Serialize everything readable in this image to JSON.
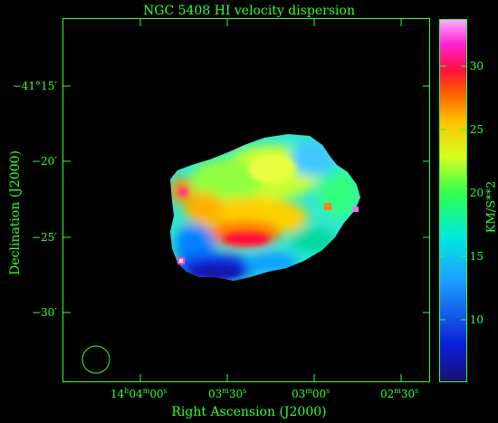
{
  "title": "NGC 5408   HI velocity dispersion",
  "axes": {
    "x_label": "Right Ascension (J2000)",
    "y_label": "Declination (J2000)",
    "x_ticks": [
      {
        "h": "14",
        "m": "04",
        "s": "00",
        "show_h": true
      },
      {
        "h": "",
        "m": "03",
        "s": "30",
        "show_h": false
      },
      {
        "h": "",
        "m": "03",
        "s": "00",
        "show_h": false
      },
      {
        "h": "",
        "m": "02",
        "s": "30",
        "show_h": false
      }
    ],
    "y_ticks": [
      "−41°15′",
      "−20′",
      "−25′",
      "−30′"
    ]
  },
  "colorbar": {
    "label": "KM/S**2",
    "ticks": [
      "10",
      "15",
      "20",
      "25",
      "30"
    ]
  },
  "colors": {
    "frame": "#33ff33",
    "background": "#000000"
  }
}
